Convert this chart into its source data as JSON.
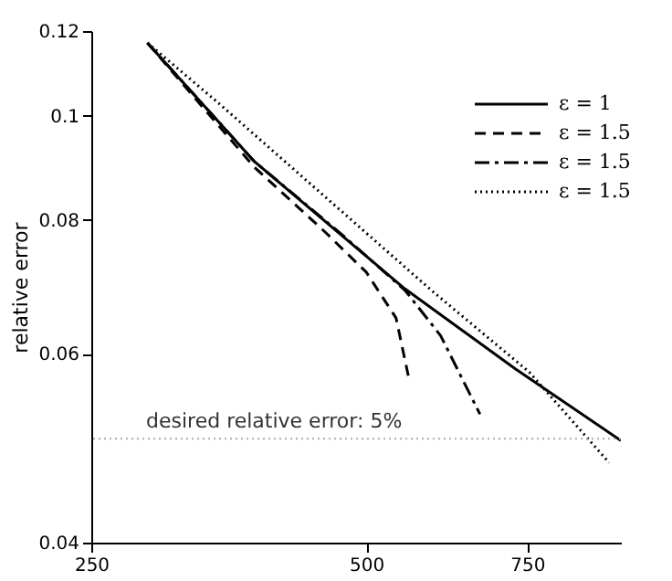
{
  "chart_data": {
    "type": "line",
    "ylabel": "relative error",
    "log": "xy",
    "xlim": [
      250,
      950
    ],
    "xticks": [
      250,
      500,
      750
    ],
    "ylim": [
      0.04,
      0.12
    ],
    "yticks": [
      0.04,
      0.06,
      0.08,
      0.1,
      0.12
    ],
    "grid": false,
    "legend": "top right",
    "marker": "none",
    "series": [
      {
        "name": "ε = 1",
        "color": "#000000",
        "line_style": "solid",
        "x": [
          288,
          377,
          551,
          728,
          950
        ],
        "values": [
          0.117,
          0.0907,
          0.069,
          0.0581,
          0.0498
        ]
      },
      {
        "name": "ε = 1.5",
        "color": "#000000",
        "line_style": "dashed",
        "x": [
          288,
          377,
          451,
          500,
          539,
          556
        ],
        "values": [
          0.117,
          0.0896,
          0.0779,
          0.0715,
          0.0648,
          0.0572
        ]
      },
      {
        "name": "ε = 1.5",
        "color": "#000000",
        "line_style": "dashdot",
        "x": [
          288,
          377,
          472,
          551,
          603,
          666
        ],
        "values": [
          0.117,
          0.0907,
          0.0773,
          0.0688,
          0.0624,
          0.0527
        ]
      },
      {
        "name": "ε = 1.5",
        "color": "#000000",
        "line_style": "dotted",
        "x": [
          288,
          345,
          590,
          754,
          922
        ],
        "values": [
          0.117,
          0.1027,
          0.0687,
          0.0577,
          0.0475
        ]
      }
    ],
    "ref_lines": [
      {
        "axis": "y",
        "value": 0.05,
        "label": "desired relative error: 5%",
        "color": "#aaaaaa",
        "line_style": "dotted"
      }
    ]
  }
}
